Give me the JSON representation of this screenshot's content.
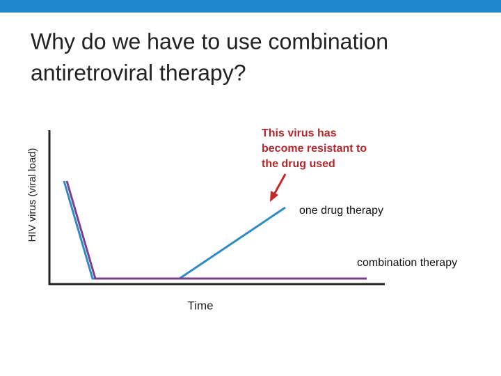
{
  "header": {
    "title_lines": [
      "Why do we have to use combination",
      "antiretroviral therapy?"
    ]
  },
  "diagram": {
    "y_axis_label": "HIV virus (viral load)",
    "x_axis_label": "Time",
    "annotation_lines": [
      "This virus has",
      "become resistant to",
      "the drug used"
    ],
    "curve_labels": [
      "one drug therapy",
      "combination therapy"
    ]
  }
}
